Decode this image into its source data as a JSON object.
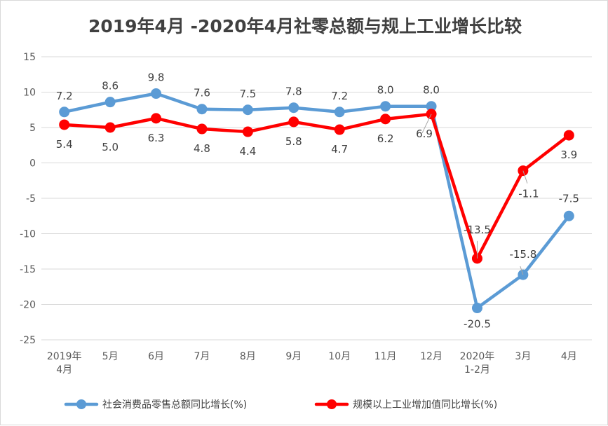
{
  "chart_data": {
    "type": "line",
    "title": "2019年4月 -2020年4月社零总额与规上工业增长比较",
    "categories": [
      [
        "2019年",
        "4月"
      ],
      [
        "5月"
      ],
      [
        "6月"
      ],
      [
        "7月"
      ],
      [
        "8月"
      ],
      [
        "9月"
      ],
      [
        "10月"
      ],
      [
        "11月"
      ],
      [
        "12月"
      ],
      [
        "2020年",
        "1-2月"
      ],
      [
        "3月"
      ],
      [
        "4月"
      ]
    ],
    "ylim": [
      -25,
      15
    ],
    "yticks": [
      15,
      10,
      5,
      0,
      -5,
      -10,
      -15,
      -20,
      -25
    ],
    "grid": true,
    "legend_position": "bottom",
    "series": [
      {
        "name": "社会消费品零售总额同比增长(%)",
        "color": "#5B9BD5",
        "values": [
          7.2,
          8.6,
          9.8,
          7.6,
          7.5,
          7.8,
          7.2,
          8.0,
          8.0,
          -20.5,
          -15.8,
          -7.5
        ],
        "labels": [
          "7.2",
          "8.6",
          "9.8",
          "7.6",
          "7.5",
          "7.8",
          "7.2",
          "8.0",
          "8.0",
          "-20.5",
          "-15.8",
          "-7.5"
        ]
      },
      {
        "name": "规模以上工业增加值同比增长(%)",
        "color": "#FF0000",
        "values": [
          5.4,
          5.0,
          6.3,
          4.8,
          4.4,
          5.8,
          4.7,
          6.2,
          6.9,
          -13.5,
          -1.1,
          3.9
        ],
        "labels": [
          "5.4",
          "5.0",
          "6.3",
          "4.8",
          "4.4",
          "5.8",
          "4.7",
          "6.2",
          "6.9",
          "-13.5",
          "-1.1",
          "3.9"
        ]
      }
    ]
  }
}
